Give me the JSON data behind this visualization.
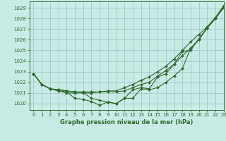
{
  "title": "Graphe pression niveau de la mer (hPa)",
  "bg_color": "#c8ebe6",
  "grid_color": "#9eccc6",
  "line_color": "#2d6a2d",
  "xlim": [
    -0.5,
    23
  ],
  "ylim": [
    1019.4,
    1029.6
  ],
  "yticks": [
    1020,
    1021,
    1022,
    1023,
    1024,
    1025,
    1026,
    1027,
    1028,
    1029
  ],
  "xticks": [
    0,
    1,
    2,
    3,
    4,
    5,
    6,
    7,
    8,
    9,
    10,
    11,
    12,
    13,
    14,
    15,
    16,
    17,
    18,
    19,
    20,
    21,
    22,
    23
  ],
  "series": [
    {
      "x": [
        0,
        1,
        2,
        3,
        4,
        5,
        6,
        7,
        8,
        9,
        10,
        11,
        12,
        13,
        14,
        15,
        16,
        17,
        18,
        19,
        20,
        21,
        22,
        23
      ],
      "y": [
        1022.8,
        1021.8,
        1021.4,
        1021.2,
        1021.1,
        1020.5,
        1020.4,
        1020.2,
        1019.85,
        1020.15,
        1020.0,
        1020.5,
        1021.3,
        1021.5,
        1021.4,
        1022.5,
        1022.8,
        1023.7,
        1024.9,
        1025.0,
        1026.1,
        1027.1,
        1028.1,
        1029.0
      ]
    },
    {
      "x": [
        0,
        1,
        2,
        3,
        4,
        5,
        6,
        7,
        8,
        9,
        10,
        11,
        12,
        13,
        14,
        15,
        16,
        17,
        18,
        19,
        20,
        21,
        22,
        23
      ],
      "y": [
        1022.8,
        1021.8,
        1021.4,
        1021.2,
        1021.0,
        1021.0,
        1021.0,
        1021.0,
        1021.1,
        1021.1,
        1021.1,
        1021.2,
        1021.5,
        1021.8,
        1022.0,
        1022.6,
        1023.1,
        1023.7,
        1024.5,
        1025.2,
        1026.0,
        1027.1,
        1028.0,
        1029.2
      ]
    },
    {
      "x": [
        0,
        1,
        2,
        3,
        4,
        5,
        6,
        7,
        8,
        9,
        10,
        11,
        12,
        13,
        14,
        15,
        16,
        17,
        18,
        19,
        20,
        21,
        22,
        23
      ],
      "y": [
        1022.8,
        1021.8,
        1021.4,
        1021.3,
        1021.2,
        1021.1,
        1021.1,
        1021.1,
        1021.1,
        1021.2,
        1021.2,
        1021.5,
        1021.8,
        1022.2,
        1022.5,
        1023.0,
        1023.5,
        1024.2,
        1025.0,
        1025.8,
        1026.5,
        1027.2,
        1028.1,
        1029.2
      ]
    },
    {
      "x": [
        0,
        1,
        2,
        3,
        4,
        5,
        6,
        7,
        8,
        9,
        10,
        11,
        12,
        13,
        14,
        15,
        16,
        17,
        18,
        19,
        20,
        21,
        22,
        23
      ],
      "y": [
        1022.8,
        1021.8,
        1021.4,
        1021.3,
        1021.2,
        1021.1,
        1021.05,
        1020.5,
        1020.3,
        1020.15,
        1020.0,
        1020.5,
        1020.5,
        1021.4,
        1021.3,
        1021.5,
        1022.0,
        1022.6,
        1023.3,
        1025.2,
        1026.05,
        1027.1,
        1028.0,
        1029.0
      ]
    }
  ]
}
